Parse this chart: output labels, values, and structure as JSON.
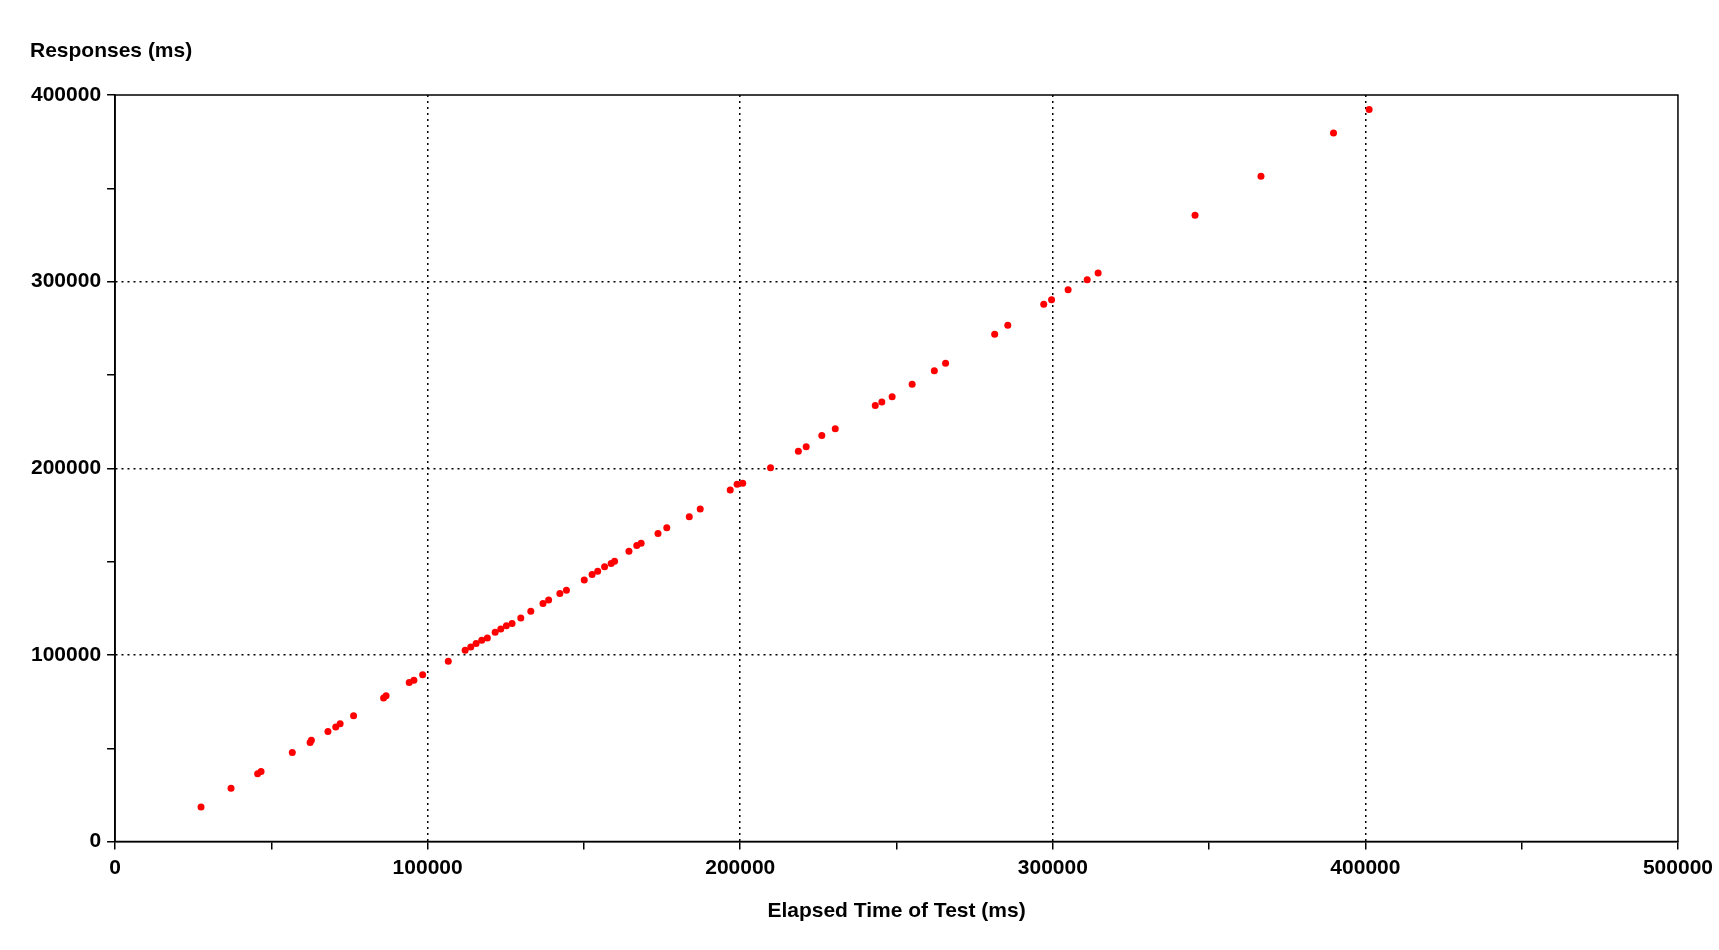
{
  "chart_data": {
    "type": "scatter",
    "ylabel": "Responses (ms)",
    "xlabel": "Elapsed Time of Test (ms)",
    "xlim": [
      0,
      500000
    ],
    "ylim": [
      0,
      400000
    ],
    "xticks": [
      0,
      {
        "value": 50000,
        "label": null
      },
      100000,
      {
        "value": 150000,
        "label": null
      },
      200000,
      {
        "value": 250000,
        "label": null
      },
      300000,
      {
        "value": 350000,
        "label": null
      },
      400000,
      {
        "value": 450000,
        "label": null
      },
      500000
    ],
    "yticks": [
      0,
      {
        "value": 50000,
        "label": null
      },
      100000,
      {
        "value": 150000,
        "label": null
      },
      200000,
      {
        "value": 250000,
        "label": null
      },
      300000,
      {
        "value": 350000,
        "label": null
      },
      400000
    ],
    "grid": true,
    "marker": "circle",
    "legend": false,
    "series": [
      {
        "color": "#ff0000",
        "x": [
          27500,
          37100,
          45600,
          46700,
          56700,
          62400,
          62800,
          68100,
          70600,
          72000,
          76300,
          85900,
          86700,
          94100,
          95600,
          98400,
          106600,
          112000,
          113800,
          115500,
          117300,
          119100,
          121600,
          123400,
          125200,
          127000,
          129800,
          133000,
          136900,
          138700,
          142300,
          144400,
          150100,
          152600,
          154400,
          156600,
          158700,
          159800,
          164400,
          166900,
          168300,
          173700,
          176500,
          183700,
          187200,
          196800,
          199000,
          200800,
          209700,
          218600,
          221100,
          226100,
          230400,
          243200,
          245300,
          248600,
          255000,
          262100,
          265700,
          281400,
          285600,
          297100,
          299600,
          304900,
          311000,
          314500,
          345500,
          366600,
          389800,
          401200
        ],
        "values": [
          18500,
          28600,
          36400,
          37600,
          47700,
          53100,
          54300,
          59000,
          61400,
          63200,
          67400,
          76900,
          78100,
          85200,
          86400,
          89400,
          96600,
          102500,
          104300,
          106100,
          107900,
          109100,
          112100,
          113900,
          115600,
          116800,
          119800,
          123400,
          127600,
          129400,
          132900,
          134700,
          140100,
          143100,
          144900,
          147200,
          149000,
          150200,
          155600,
          158600,
          159800,
          165100,
          168100,
          174100,
          178200,
          188400,
          191400,
          192000,
          200300,
          209200,
          211600,
          217600,
          221200,
          233700,
          235500,
          238400,
          245000,
          252200,
          256300,
          271800,
          276600,
          287900,
          290300,
          295700,
          301000,
          304600,
          335600,
          356500,
          379700,
          392200
        ]
      }
    ]
  }
}
